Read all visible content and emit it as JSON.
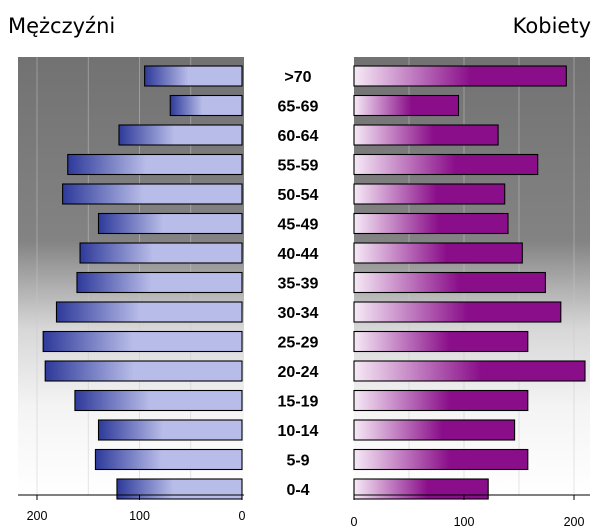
{
  "chart_data": {
    "type": "bar",
    "subtype": "population-pyramid",
    "categories": [
      "0-4",
      "5-9",
      "10-14",
      "15-19",
      "20-24",
      "25-29",
      "30-34",
      "35-39",
      "40-44",
      "45-49",
      "50-54",
      "55-59",
      "60-64",
      "65-69",
      ">70"
    ],
    "series": [
      {
        "name": "Mężczyźni",
        "side": "left",
        "values": [
          122,
          143,
          140,
          163,
          192,
          194,
          181,
          161,
          158,
          140,
          175,
          170,
          120,
          70,
          95
        ],
        "color": "#b8bce8",
        "gradient_end": "#2e3a9a"
      },
      {
        "name": "Kobiety",
        "side": "right",
        "values": [
          122,
          158,
          146,
          158,
          210,
          158,
          188,
          174,
          153,
          140,
          137,
          167,
          131,
          95,
          193
        ],
        "color": "#8a0e8a",
        "gradient_start": "#f6eaf6"
      }
    ],
    "left_axis": {
      "ticks": [
        200,
        100,
        0
      ],
      "range": [
        0,
        200
      ],
      "reversed": true
    },
    "right_axis": {
      "ticks": [
        0,
        100,
        200
      ],
      "range": [
        0,
        200
      ]
    },
    "grid": true,
    "background": "gray-to-white gradient"
  }
}
